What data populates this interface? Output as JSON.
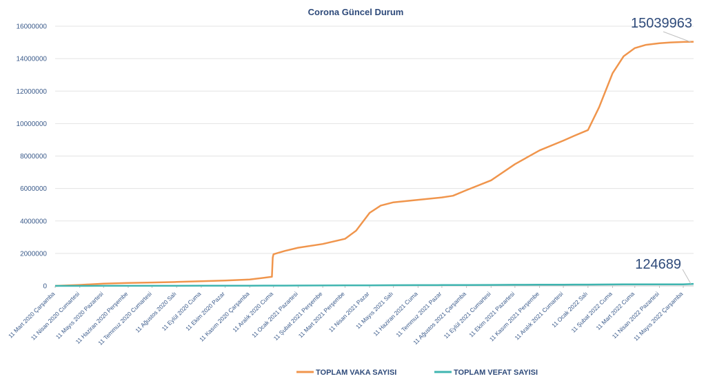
{
  "chart_data": {
    "type": "line",
    "title": "Corona Güncel Durum",
    "xlabel": "",
    "ylabel": "",
    "ylim": [
      0,
      16000000
    ],
    "yticks": [
      0,
      2000000,
      4000000,
      6000000,
      8000000,
      10000000,
      12000000,
      14000000,
      16000000
    ],
    "ytick_labels": [
      "0",
      "2000000",
      "4000000",
      "6000000",
      "8000000",
      "10000000",
      "12000000",
      "14000000",
      "16000000"
    ],
    "x_labels": [
      "11 Mart 2020 Çarşamba",
      "11 Nisan 2020 Cumartesi",
      "11 Mayıs 2020 Pazartesi",
      "11 Haziran 2020 Perşembe",
      "11 Temmuz 2020 Cumartesi",
      "11 Ağustos 2020 Salı",
      "11 Eylül 2020 Cuma",
      "11 Ekim 2020 Pazar",
      "11 Kasım 2020 Çarşamba",
      "11 Aralık 2020 Cuma",
      "11 Ocak 2021 Pazartesi",
      "11 Şubat 2021 Perşembe",
      "11 Mart 2021 Perşembe",
      "11 Nisan 2021 Pazar",
      "11 Mayıs 2021 Salı",
      "11 Haziran 2021 Cuma",
      "11 Temmuz 2021 Pazar",
      "11 Ağustos 2021 Çarşamba",
      "11 Eylül 2021 Cumartesi",
      "11 Ekim 2021 Pazartesi",
      "11 Kasım 2021 Perşembe",
      "11 Aralık 2021 Cumartesi",
      "11 Ocak 2022 Salı",
      "11 Şubat 2022 Cuma",
      "11 Mart 2022 Cuma",
      "11 Nisan 2022 Pazartesi",
      "11 Mayıs 2022 Çarşamba"
    ],
    "x": [
      "2020-03-11",
      "2020-04-11",
      "2020-05-11",
      "2020-06-11",
      "2020-07-11",
      "2020-08-11",
      "2020-09-11",
      "2020-10-11",
      "2020-11-11",
      "2020-12-09",
      "2020-12-10",
      "2020-12-11",
      "2020-12-25",
      "2021-01-11",
      "2021-02-11",
      "2021-03-11",
      "2021-03-25",
      "2021-04-11",
      "2021-04-25",
      "2021-05-11",
      "2021-06-11",
      "2021-07-11",
      "2021-07-25",
      "2021-08-11",
      "2021-09-11",
      "2021-10-11",
      "2021-11-11",
      "2021-12-11",
      "2021-12-25",
      "2022-01-11",
      "2022-01-25",
      "2022-02-11",
      "2022-02-25",
      "2022-03-11",
      "2022-03-25",
      "2022-04-11",
      "2022-04-25",
      "2022-05-11",
      "2022-05-24"
    ],
    "series": [
      {
        "name": "TOPLAM VAKA SAYISI",
        "color": "#f0954c",
        "values": [
          0,
          60000,
          140000,
          180000,
          210000,
          240000,
          290000,
          330000,
          390000,
          560000,
          1750000,
          1950000,
          2150000,
          2350000,
          2580000,
          2900000,
          3400000,
          4500000,
          4950000,
          5150000,
          5300000,
          5450000,
          5550000,
          5900000,
          6500000,
          7500000,
          8350000,
          8950000,
          9250000,
          9600000,
          11000000,
          13100000,
          14150000,
          14650000,
          14850000,
          14950000,
          15000000,
          15030000,
          15039963
        ]
      },
      {
        "name": "TOPLAM VEFAT SAYISI",
        "color": "#3fb5b0",
        "values": [
          0,
          1100,
          4000,
          4800,
          5400,
          5800,
          6500,
          8600,
          11000,
          15000,
          15500,
          16000,
          18500,
          22000,
          26500,
          29000,
          30500,
          35000,
          40000,
          44000,
          48500,
          50000,
          51000,
          53500,
          60000,
          67000,
          73500,
          78000,
          80000,
          82500,
          85000,
          89000,
          93500,
          96000,
          97500,
          98500,
          99000,
          99200,
          124689
        ]
      }
    ],
    "annotations": [
      "15039963",
      "124689"
    ],
    "legend_position": "bottom",
    "grid": true
  }
}
